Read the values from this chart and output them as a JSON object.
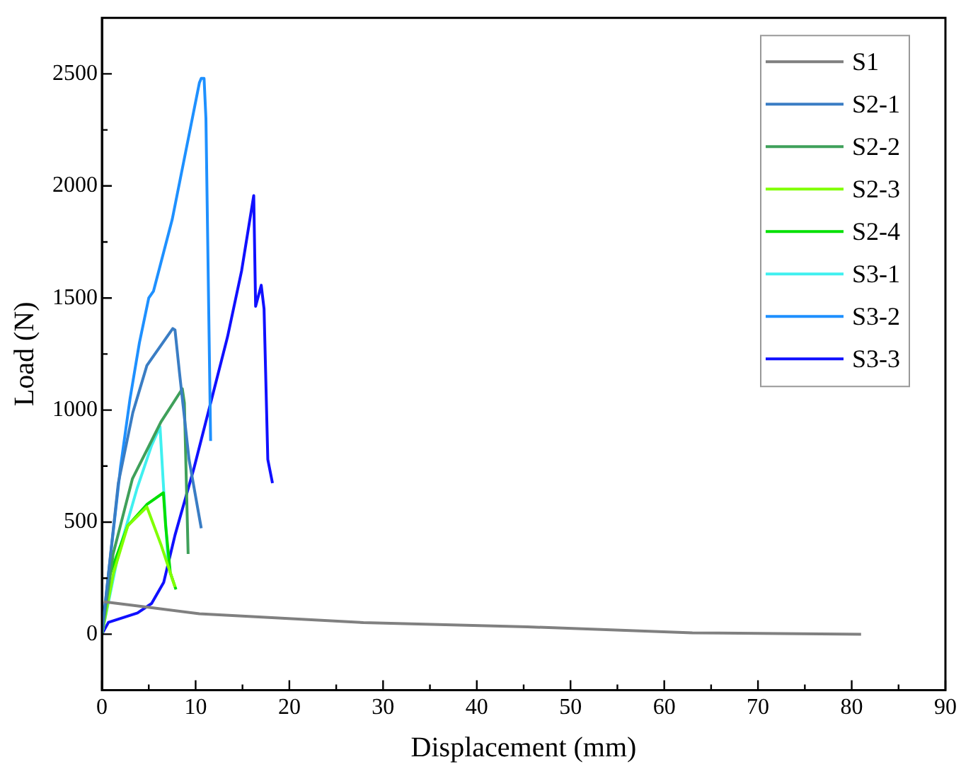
{
  "chart_data": {
    "type": "line",
    "xlabel": "Displacement (mm)",
    "ylabel": "Load (N)",
    "xlim": [
      0,
      90
    ],
    "xticks": [
      0,
      10,
      20,
      30,
      40,
      50,
      60,
      70,
      80,
      90
    ],
    "ylim": [
      -250,
      2750
    ],
    "yticks": [
      0,
      500,
      1000,
      1500,
      2000,
      2500
    ],
    "grid": false,
    "legend": "top right",
    "marker": "none",
    "line_style": "solid",
    "series": [
      {
        "name": "S1",
        "color": "#808080",
        "x": [
          0.2,
          4.6,
          10.4,
          27.9,
          45.4,
          63,
          81
        ],
        "values": [
          145,
          122,
          91,
          52,
          33,
          6,
          0
        ]
      },
      {
        "name": "S2-1",
        "color": "#3a7dc4",
        "x": [
          0,
          1.75,
          3.3,
          4.8,
          7.56,
          7.8,
          8.3,
          9.3,
          10.6
        ],
        "values": [
          0,
          674,
          989,
          1199,
          1364,
          1357,
          1158,
          779,
          473
        ]
      },
      {
        "name": "S2-2",
        "color": "#3fa05a",
        "x": [
          0,
          1.2,
          3.26,
          5.3,
          6.3,
          8.58,
          8.8,
          9.2
        ],
        "values": [
          0,
          358,
          694,
          863,
          947,
          1095,
          1032,
          358
        ]
      },
      {
        "name": "S2-3",
        "color": "#80ff00",
        "x": [
          0,
          1.24,
          2.76,
          4.8,
          6.3,
          7.8
        ],
        "values": [
          0,
          274,
          484,
          568,
          400,
          211
        ]
      },
      {
        "name": "S2-4",
        "color": "#00e000",
        "x": [
          0,
          0.73,
          2.76,
          4.8,
          6.56,
          6.8,
          7.3,
          7.9
        ],
        "values": [
          0,
          253,
          484,
          579,
          631,
          484,
          274,
          200
        ]
      },
      {
        "name": "S3-1",
        "color": "#40f0f0",
        "x": [
          0,
          1.75,
          3.77,
          5.3,
          6.2,
          6.55,
          7.06
        ],
        "values": [
          0,
          358,
          653,
          842,
          926,
          674,
          316
        ]
      },
      {
        "name": "S3-2",
        "color": "#1e90ff",
        "x": [
          0,
          1,
          2,
          3,
          4,
          5,
          5.5,
          7.5,
          10.4,
          10.6,
          10.9,
          11.1,
          11.6
        ],
        "values": [
          0,
          380,
          750,
          1050,
          1300,
          1500,
          1530,
          1850,
          2460,
          2480,
          2480,
          2300,
          862
        ]
      },
      {
        "name": "S3-3",
        "color": "#1010ff",
        "x": [
          0,
          0.7,
          3.8,
          5.3,
          6.6,
          7.8,
          9.8,
          13.4,
          14.9,
          16.2,
          16.4,
          17.0,
          17.3,
          17.7,
          18.2
        ],
        "values": [
          0,
          53,
          95,
          137,
          232,
          442,
          737,
          1326,
          1620,
          1957,
          1463,
          1557,
          1452,
          780,
          674
        ]
      }
    ]
  }
}
